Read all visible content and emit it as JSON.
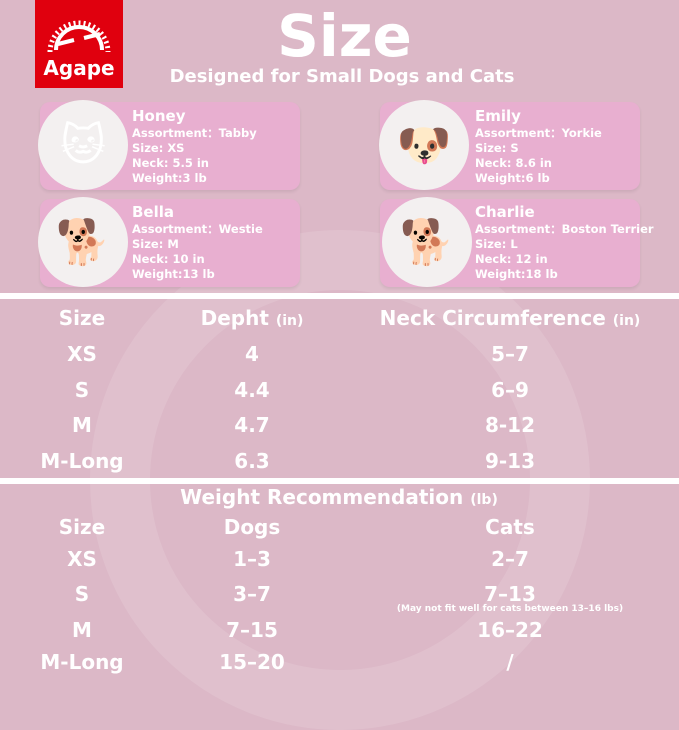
{
  "brand": {
    "name": "Agape",
    "color": "#e0000e"
  },
  "header": {
    "title": "Size",
    "subtitle": "Designed for Small Dogs and Cats"
  },
  "pets": [
    {
      "name": "Honey",
      "assortment": "Assortment：Tabby",
      "size": "Size: XS",
      "neck": "Neck: 5.5 in",
      "weight": "Weight:3 lb",
      "icon": "cat-photo"
    },
    {
      "name": "Emily",
      "assortment": "Assortment：Yorkie",
      "size": "Size: S",
      "neck": "Neck: 8.6 in",
      "weight": "Weight:6 lb",
      "icon": "dog-photo"
    },
    {
      "name": "Bella",
      "assortment": "Assortment：Westie",
      "size": "Size: M",
      "neck": "Neck: 10 in",
      "weight": "Weight:13 lb",
      "icon": "dog-photo"
    },
    {
      "name": "Charlie",
      "assortment": "Assortment：Boston Terrier",
      "size": "Size: L",
      "neck": "Neck: 12 in",
      "weight": "Weight:18 lb",
      "icon": "dog-photo"
    }
  ],
  "size_table": {
    "headers": {
      "size": "Size",
      "depth": "Depht",
      "depth_unit": "(in)",
      "neck": "Neck Circumference",
      "neck_unit": "(in)"
    },
    "rows": [
      [
        "XS",
        "4",
        "5–7"
      ],
      [
        "S",
        "4.4",
        "6–9"
      ],
      [
        "M",
        "4.7",
        "8-12"
      ],
      [
        "M-Long",
        "6.3",
        "9-13"
      ]
    ]
  },
  "weight_table": {
    "title": "Weight Recommendation",
    "title_unit": "(lb)",
    "headers": {
      "size": "Size",
      "dogs": "Dogs",
      "cats": "Cats"
    },
    "rows": [
      [
        "XS",
        "1–3",
        "2–7"
      ],
      [
        "S",
        "3–7",
        "7–13"
      ],
      [
        "M",
        "7–15",
        "16–22"
      ],
      [
        "M-Long",
        "15–20",
        "/"
      ]
    ],
    "note": "(May not fit well for cats between 13–16 lbs)"
  },
  "colors": {
    "background": "#dcb8c7",
    "card": "#e8afd0"
  }
}
